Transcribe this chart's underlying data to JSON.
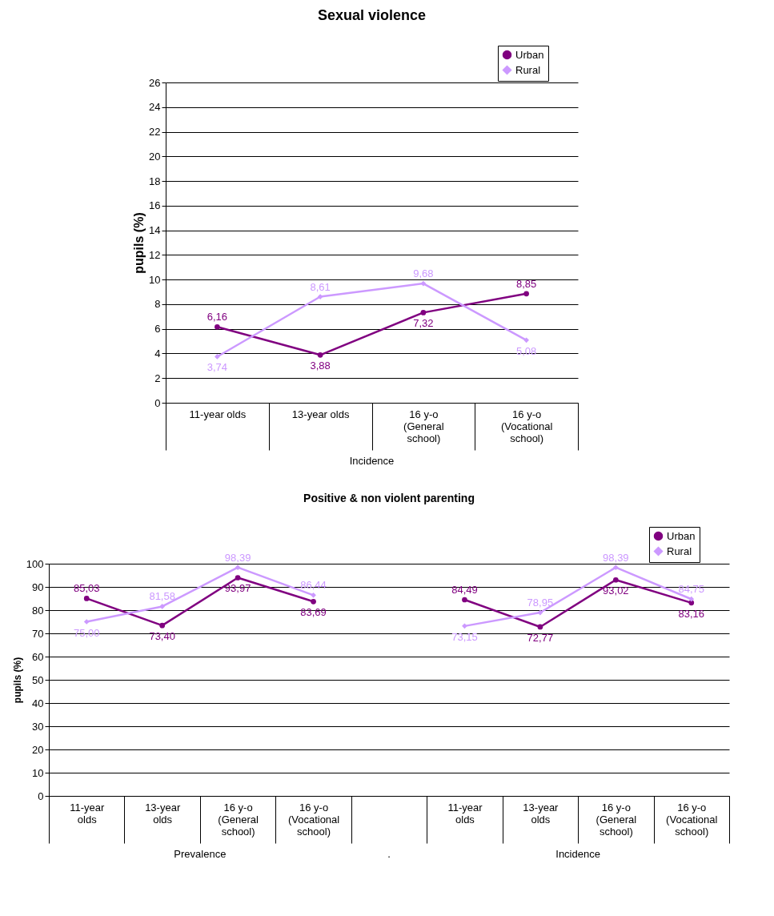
{
  "chart_data": [
    {
      "type": "line",
      "title": "Sexual violence",
      "ylabel": "pupils (%)",
      "categories": [
        "11-year olds",
        "13-year olds",
        "16 y-o (General school)",
        "16 y-o (Vocational school)"
      ],
      "annotations": [
        "Incidence"
      ],
      "series": [
        {
          "name": "Urban",
          "color": "#800080",
          "marker": "circle",
          "values": [
            6.16,
            3.88,
            7.32,
            8.85
          ],
          "value_labels": [
            "6,16",
            "3,88",
            "7,32",
            "8,85"
          ]
        },
        {
          "name": "Rural",
          "color": "#cc99ff",
          "marker": "diamond",
          "values": [
            3.74,
            8.61,
            9.68,
            5.08
          ],
          "value_labels": [
            "3,74",
            "8,61",
            "9,68",
            "5,08"
          ]
        }
      ],
      "ylim": [
        0,
        26
      ],
      "yticks": [
        0,
        2,
        4,
        6,
        8,
        10,
        12,
        14,
        16,
        18,
        20,
        22,
        24,
        26
      ],
      "grid": "y",
      "legend": "top right"
    },
    {
      "type": "line",
      "title": "Positive & non violent parenting",
      "ylabel": "pupils (%)",
      "categories": [
        "11-year olds",
        "13-year olds",
        "16 y-o (General school)",
        "16 y-o (Vocational school)",
        null,
        "11-year olds",
        "13-year olds",
        "16 y-o (General school)",
        "16 y-o (Vocational school)"
      ],
      "annotations": [
        "Prevalence",
        ".",
        "Incidence"
      ],
      "series": [
        {
          "name": "Urban",
          "color": "#800080",
          "marker": "circle",
          "values": [
            85.03,
            73.4,
            93.97,
            83.69,
            null,
            84.49,
            72.77,
            93.02,
            83.16
          ],
          "value_labels": [
            "85,03",
            "73,40",
            "93,97",
            "83,69",
            null,
            "84,49",
            "72,77",
            "93,02",
            "83,16"
          ]
        },
        {
          "name": "Rural",
          "color": "#cc99ff",
          "marker": "diamond",
          "values": [
            75.0,
            81.58,
            98.39,
            86.44,
            null,
            73.15,
            78.95,
            98.39,
            84.75
          ],
          "value_labels": [
            "75,00",
            "81,58",
            "98,39",
            "86,44",
            null,
            "73,15",
            "78,95",
            "98,39",
            "84,75"
          ]
        }
      ],
      "ylim": [
        0,
        100
      ],
      "yticks": [
        0,
        10,
        20,
        30,
        40,
        50,
        60,
        70,
        80,
        90,
        100
      ],
      "grid": "y",
      "legend": "top right"
    }
  ]
}
